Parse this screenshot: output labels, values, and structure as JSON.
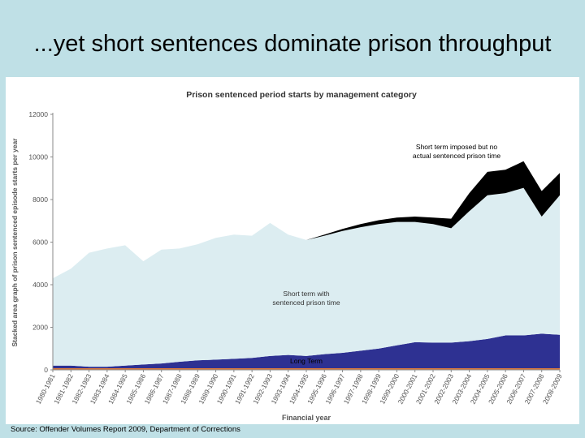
{
  "slide": {
    "title": "...yet short sentences dominate prison throughput",
    "source": "Source: Offender Volumes Report 2009, Department of Corrections"
  },
  "colors": {
    "background": "#bfe0e6",
    "short_no_time": "#000000",
    "short_with_time": "#dcedf1",
    "long_term": "#2e3192",
    "bottom_strip": "#e07a3a",
    "axis_text": "#555555",
    "title_text": "#333333"
  },
  "chart_data": {
    "type": "area",
    "stacked": true,
    "title": "Prison sentenced period starts by management category",
    "xlabel": "Financial year",
    "ylabel": "Stacked area graph of prison sentenced episode starts per year",
    "ylim": [
      0,
      12000
    ],
    "yticks": [
      0,
      2000,
      4000,
      6000,
      8000,
      10000,
      12000
    ],
    "ytick_labels": [
      "0",
      "2000",
      "4000",
      "6000",
      "8000",
      "10000",
      "12000"
    ],
    "grid": false,
    "x": [
      "1980-1981",
      "1981-1982",
      "1982-1983",
      "1983-1984",
      "1984-1985",
      "1985-1986",
      "1986-1987",
      "1987-1988",
      "1988-1989",
      "1989-1990",
      "1990-1991",
      "1991-1992",
      "1992-1993",
      "1993-1994",
      "1994-1995",
      "1995-1996",
      "1996-1997",
      "1997-1998",
      "1998-1999",
      "1999-2000",
      "2000-2001",
      "2001-2002",
      "2002-2003",
      "2003-2004",
      "2004-2005",
      "2005-2006",
      "2006-2007",
      "2007-2008",
      "2008-2009"
    ],
    "series": [
      {
        "name": "Long Term",
        "values": [
          200,
          200,
          150,
          150,
          200,
          250,
          300,
          380,
          450,
          480,
          520,
          560,
          650,
          700,
          650,
          740,
          800,
          900,
          1000,
          1150,
          1300,
          1280,
          1280,
          1350,
          1450,
          1620,
          1620,
          1700,
          1650
        ]
      },
      {
        "name": "Short term with sentenced prison time",
        "values": [
          4100,
          4550,
          5350,
          5550,
          5650,
          4850,
          5350,
          5320,
          5450,
          5720,
          5830,
          5740,
          6250,
          5650,
          5450,
          5560,
          5720,
          5800,
          5850,
          5800,
          5650,
          5570,
          5370,
          6100,
          6750,
          6680,
          6930,
          5500,
          6550
        ]
      },
      {
        "name": "Short term imposed but no actual sentenced prison time",
        "values": [
          0,
          0,
          0,
          0,
          0,
          0,
          0,
          0,
          0,
          0,
          0,
          0,
          0,
          0,
          0,
          50,
          100,
          150,
          180,
          200,
          250,
          300,
          450,
          850,
          1100,
          1100,
          1250,
          1200,
          1050
        ]
      }
    ],
    "annotations": {
      "short_no_time_label": [
        "Short term imposed but no",
        "actual sentenced prison time"
      ],
      "short_with_time_label": [
        "Short term with",
        "sentenced prison time"
      ],
      "long_term_label": "Long Term"
    }
  }
}
